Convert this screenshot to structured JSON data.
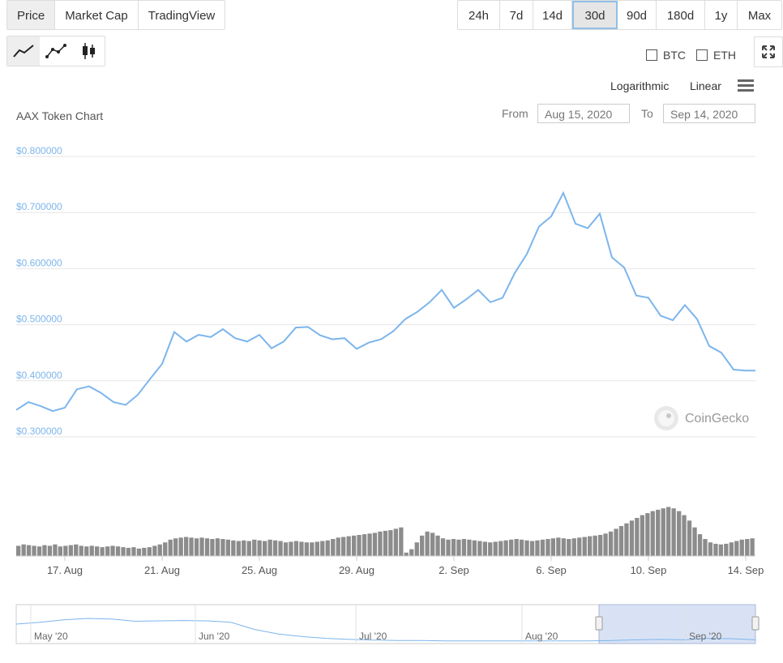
{
  "tabs": [
    "Price",
    "Market Cap",
    "TradingView"
  ],
  "ranges": [
    "24h",
    "7d",
    "14d",
    "30d",
    "90d",
    "180d",
    "1y",
    "Max"
  ],
  "active_range": "30d",
  "chart_types": [
    "line-chart-icon",
    "point-chart-icon",
    "candlestick-icon"
  ],
  "compare": {
    "btc": "BTC",
    "eth": "ETH"
  },
  "scale": {
    "log": "Logarithmic",
    "linear": "Linear"
  },
  "date_range": {
    "from_label": "From",
    "from": "Aug 15, 2020",
    "to_label": "To",
    "to": "Sep 14, 2020"
  },
  "watermark": "CoinGecko",
  "colors": {
    "line": "#7cb5ec",
    "volume": "#888888",
    "navigator_fill": "#d9e2f5",
    "axis_labels": "#7cb5ec"
  },
  "chart_data": {
    "type": "line",
    "title": "AAX Token Chart",
    "ylim": [
      0.3,
      0.8
    ],
    "y_ticks": [
      "$0.800000",
      "$0.700000",
      "$0.600000",
      "$0.500000",
      "$0.400000",
      "$0.300000"
    ],
    "y_tick_values": [
      0.8,
      0.7,
      0.6,
      0.5,
      0.4,
      0.3
    ],
    "x_ticks": [
      "17. Aug",
      "21. Aug",
      "25. Aug",
      "29. Aug",
      "2. Sep",
      "6. Sep",
      "10. Sep",
      "14. Sep"
    ],
    "x_tick_days": [
      2,
      6,
      10,
      14,
      18,
      22,
      26,
      30
    ],
    "xlim_days": [
      0.0,
      30.4
    ],
    "series": [
      {
        "points": [
          [
            0,
            0.348
          ],
          [
            0.5,
            0.362
          ],
          [
            1,
            0.355
          ],
          [
            1.5,
            0.346
          ],
          [
            2,
            0.352
          ],
          [
            2.5,
            0.385
          ],
          [
            3,
            0.39
          ],
          [
            3.5,
            0.378
          ],
          [
            4,
            0.362
          ],
          [
            4.5,
            0.357
          ],
          [
            5,
            0.375
          ],
          [
            5.5,
            0.403
          ],
          [
            6,
            0.43
          ],
          [
            6.5,
            0.487
          ],
          [
            7,
            0.47
          ],
          [
            7.5,
            0.482
          ],
          [
            8,
            0.478
          ],
          [
            8.5,
            0.492
          ],
          [
            9,
            0.476
          ],
          [
            9.5,
            0.47
          ],
          [
            10,
            0.482
          ],
          [
            10.5,
            0.458
          ],
          [
            11,
            0.47
          ],
          [
            11.5,
            0.495
          ],
          [
            12,
            0.496
          ],
          [
            12.5,
            0.481
          ],
          [
            13,
            0.474
          ],
          [
            13.5,
            0.476
          ],
          [
            14,
            0.457
          ],
          [
            14.5,
            0.468
          ],
          [
            15,
            0.474
          ],
          [
            15.5,
            0.488
          ],
          [
            16,
            0.51
          ],
          [
            16.5,
            0.523
          ],
          [
            17,
            0.54
          ],
          [
            17.5,
            0.562
          ],
          [
            18,
            0.53
          ],
          [
            18.5,
            0.545
          ],
          [
            19,
            0.562
          ],
          [
            19.5,
            0.54
          ],
          [
            20,
            0.548
          ],
          [
            20.5,
            0.592
          ],
          [
            21,
            0.626
          ],
          [
            21.5,
            0.675
          ],
          [
            22,
            0.693
          ],
          [
            22.5,
            0.735
          ],
          [
            23,
            0.68
          ],
          [
            23.5,
            0.672
          ],
          [
            24,
            0.698
          ],
          [
            24.5,
            0.62
          ],
          [
            25,
            0.602
          ],
          [
            25.5,
            0.552
          ],
          [
            26,
            0.548
          ],
          [
            26.5,
            0.516
          ],
          [
            27,
            0.508
          ],
          [
            27.5,
            0.535
          ],
          [
            28,
            0.51
          ],
          [
            28.5,
            0.462
          ],
          [
            29,
            0.45
          ],
          [
            29.5,
            0.42
          ],
          [
            30,
            0.418
          ],
          [
            30.4,
            0.418
          ]
        ]
      }
    ],
    "volume": [
      0.15,
      0.17,
      0.16,
      0.15,
      0.14,
      0.16,
      0.15,
      0.17,
      0.14,
      0.15,
      0.16,
      0.17,
      0.15,
      0.14,
      0.15,
      0.14,
      0.13,
      0.14,
      0.15,
      0.14,
      0.13,
      0.12,
      0.13,
      0.11,
      0.12,
      0.13,
      0.15,
      0.17,
      0.2,
      0.24,
      0.26,
      0.27,
      0.28,
      0.27,
      0.26,
      0.27,
      0.26,
      0.25,
      0.26,
      0.25,
      0.24,
      0.23,
      0.22,
      0.23,
      0.22,
      0.24,
      0.23,
      0.22,
      0.24,
      0.23,
      0.22,
      0.2,
      0.21,
      0.22,
      0.21,
      0.2,
      0.2,
      0.21,
      0.22,
      0.23,
      0.25,
      0.27,
      0.28,
      0.29,
      0.3,
      0.31,
      0.32,
      0.33,
      0.34,
      0.36,
      0.37,
      0.38,
      0.4,
      0.42,
      0.05,
      0.1,
      0.2,
      0.3,
      0.36,
      0.34,
      0.3,
      0.26,
      0.24,
      0.25,
      0.24,
      0.25,
      0.24,
      0.23,
      0.22,
      0.21,
      0.2,
      0.21,
      0.22,
      0.23,
      0.24,
      0.25,
      0.24,
      0.23,
      0.22,
      0.23,
      0.24,
      0.25,
      0.26,
      0.27,
      0.26,
      0.25,
      0.26,
      0.27,
      0.28,
      0.29,
      0.3,
      0.31,
      0.33,
      0.36,
      0.4,
      0.44,
      0.48,
      0.52,
      0.56,
      0.6,
      0.63,
      0.66,
      0.68,
      0.7,
      0.72,
      0.7,
      0.66,
      0.6,
      0.52,
      0.42,
      0.32,
      0.25,
      0.2,
      0.18,
      0.17,
      0.18,
      0.2,
      0.22,
      0.24,
      0.25,
      0.26
    ],
    "navigator": {
      "x_ticks": [
        "May '20",
        "Jun '20",
        "Jul '20",
        "Aug '20",
        "Sep '20"
      ],
      "values": [
        0.5,
        0.55,
        0.62,
        0.66,
        0.64,
        0.58,
        0.59,
        0.6,
        0.59,
        0.55,
        0.35,
        0.22,
        0.15,
        0.1,
        0.07,
        0.05,
        0.04,
        0.04,
        0.03,
        0.03,
        0.03,
        0.03,
        0.03,
        0.03,
        0.03,
        0.04,
        0.06,
        0.07,
        0.06,
        0.1,
        0.09,
        0.06
      ],
      "selection": [
        "Aug 15, 2020",
        "Sep 14, 2020"
      ]
    }
  }
}
